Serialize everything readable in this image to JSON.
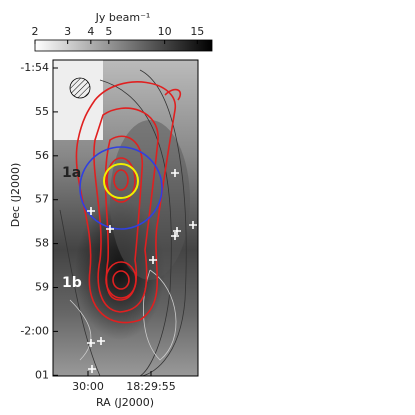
{
  "chart_data": {
    "type": "image-map",
    "colorbar": {
      "label": "Jy beam⁻¹",
      "ticks": [
        2,
        3,
        4,
        5,
        10,
        15
      ],
      "lim": [
        2,
        18
      ],
      "log": true
    },
    "xlabel": "RA (J2000)",
    "ylabel": "Dec (J2000)",
    "xticks": [
      "30:00",
      "18:29:55"
    ],
    "yticks": [
      "-1:54",
      "55",
      "56",
      "57",
      "58",
      "59",
      "-2:00",
      "01"
    ],
    "labels": [
      "1a",
      "1b"
    ]
  }
}
